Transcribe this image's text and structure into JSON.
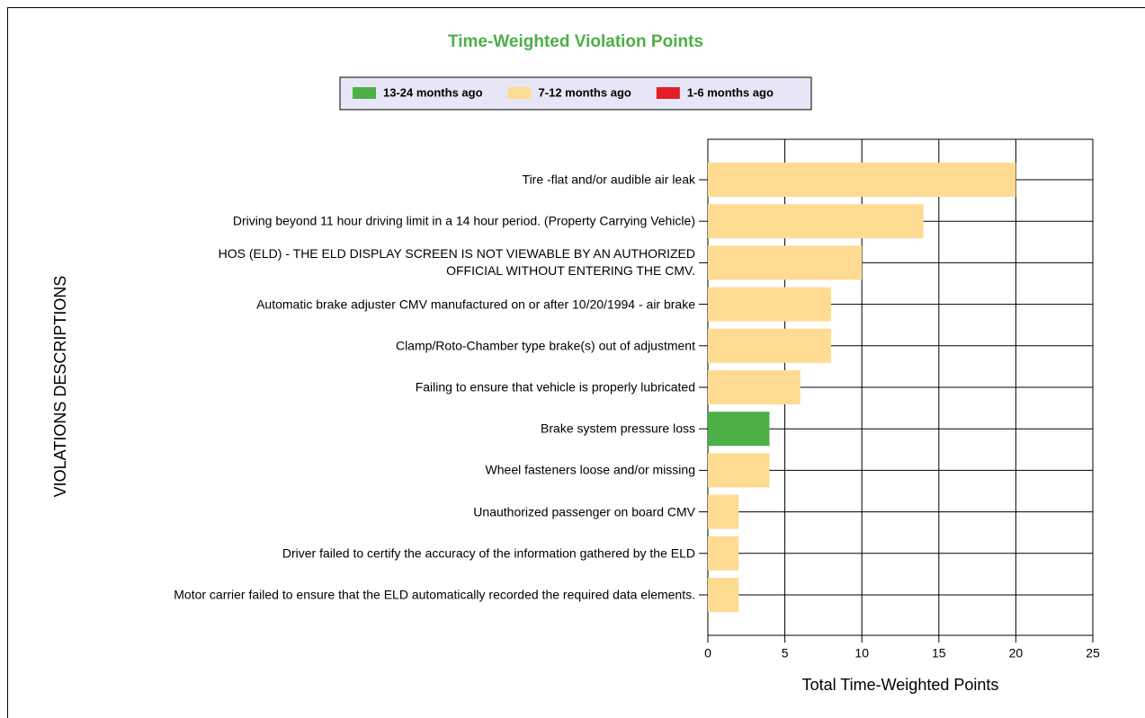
{
  "chart_data": {
    "type": "barh_stacked",
    "title": "Time-Weighted Violation Points",
    "x_label": "Total Time-Weighted Points",
    "y_label": "VIOLATIONS DESCRIPTIONS",
    "categories": [
      "Tire -flat and/or audible air leak",
      "Driving beyond 11 hour driving limit in a 14 hour period. (Property Carrying Vehicle)",
      "HOS (ELD) - THE ELD DISPLAY SCREEN IS NOT VIEWABLE BY AN AUTHORIZED OFFICIAL WITHOUT ENTERING THE CMV.",
      "Automatic brake adjuster CMV manufactured on or after 10/20/1994 - air brake",
      "Clamp/Roto-Chamber type brake(s) out of adjustment",
      "Failing to ensure that vehicle is properly lubricated",
      "Brake system pressure loss",
      "Wheel fasteners loose and/or missing",
      "Unauthorized passenger on board CMV",
      "Driver failed to certify the accuracy of the information gathered by the ELD",
      "Motor carrier failed to ensure that the ELD automatically recorded the required data elements."
    ],
    "series": [
      {
        "name": "13-24 months ago",
        "color": "#4caf48",
        "values": [
          0,
          0,
          0,
          0,
          0,
          0,
          4,
          0,
          0,
          0,
          0
        ]
      },
      {
        "name": "7-12 months ago",
        "color": "#fedb92",
        "values": [
          20,
          14,
          10,
          8,
          8,
          6,
          0,
          4,
          2,
          2,
          2
        ]
      },
      {
        "name": "1-6 months ago",
        "color": "#e41e26",
        "values": [
          0,
          0,
          0,
          0,
          0,
          0,
          0,
          0,
          0,
          0,
          0
        ]
      }
    ],
    "xlim": [
      0,
      25
    ],
    "xticks": [
      0,
      5,
      10,
      15,
      20,
      25
    ],
    "grid": true,
    "legend": "top"
  }
}
